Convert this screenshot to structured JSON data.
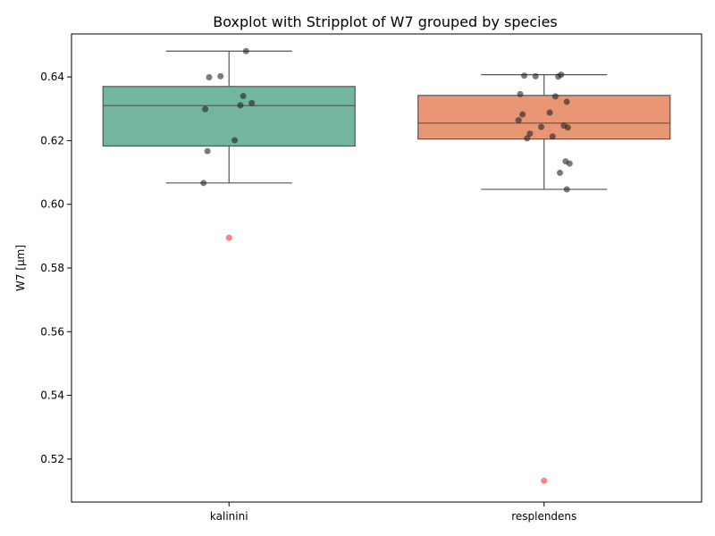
{
  "chart_data": {
    "type": "box",
    "title": "Boxplot with Stripplot of W7 grouped by species",
    "xlabel": "",
    "ylabel": "W7 [μm]",
    "ylim": [
      0.5065,
      0.6535
    ],
    "yticks": [
      0.52,
      0.54,
      0.56,
      0.58,
      0.6,
      0.62,
      0.64
    ],
    "ytick_labels": [
      "0.52",
      "0.54",
      "0.56",
      "0.58",
      "0.60",
      "0.62",
      "0.64"
    ],
    "categories": [
      "kalinini",
      "resplendens"
    ],
    "colors": {
      "kalinini": "#72b5a0",
      "resplendens": "#e99675",
      "box_edge": "#555555",
      "points": "#222222",
      "outliers": "#ff8080"
    },
    "boxes": [
      {
        "category": "kalinini",
        "q1": 0.6183,
        "median": 0.631,
        "q3": 0.637,
        "whisker_low": 0.6067,
        "whisker_high": 0.6481,
        "outliers": [
          0.5895
        ]
      },
      {
        "category": "resplendens",
        "q1": 0.6205,
        "median": 0.6255,
        "q3": 0.6342,
        "whisker_low": 0.6047,
        "whisker_high": 0.6407,
        "outliers": [
          0.5132
        ]
      }
    ],
    "strip_points": [
      {
        "category": "kalinini",
        "values": [
          0.6481,
          0.6399,
          0.6402,
          0.634,
          0.6299,
          0.6311,
          0.6318,
          0.6201,
          0.6167,
          0.6067
        ]
      },
      {
        "category": "resplendens",
        "values": [
          0.6407,
          0.6404,
          0.6402,
          0.6401,
          0.6346,
          0.6339,
          0.6322,
          0.6288,
          0.6282,
          0.6264,
          0.6247,
          0.6243,
          0.6241,
          0.6222,
          0.6213,
          0.6207,
          0.6135,
          0.6128,
          0.6099,
          0.6047
        ]
      }
    ]
  }
}
